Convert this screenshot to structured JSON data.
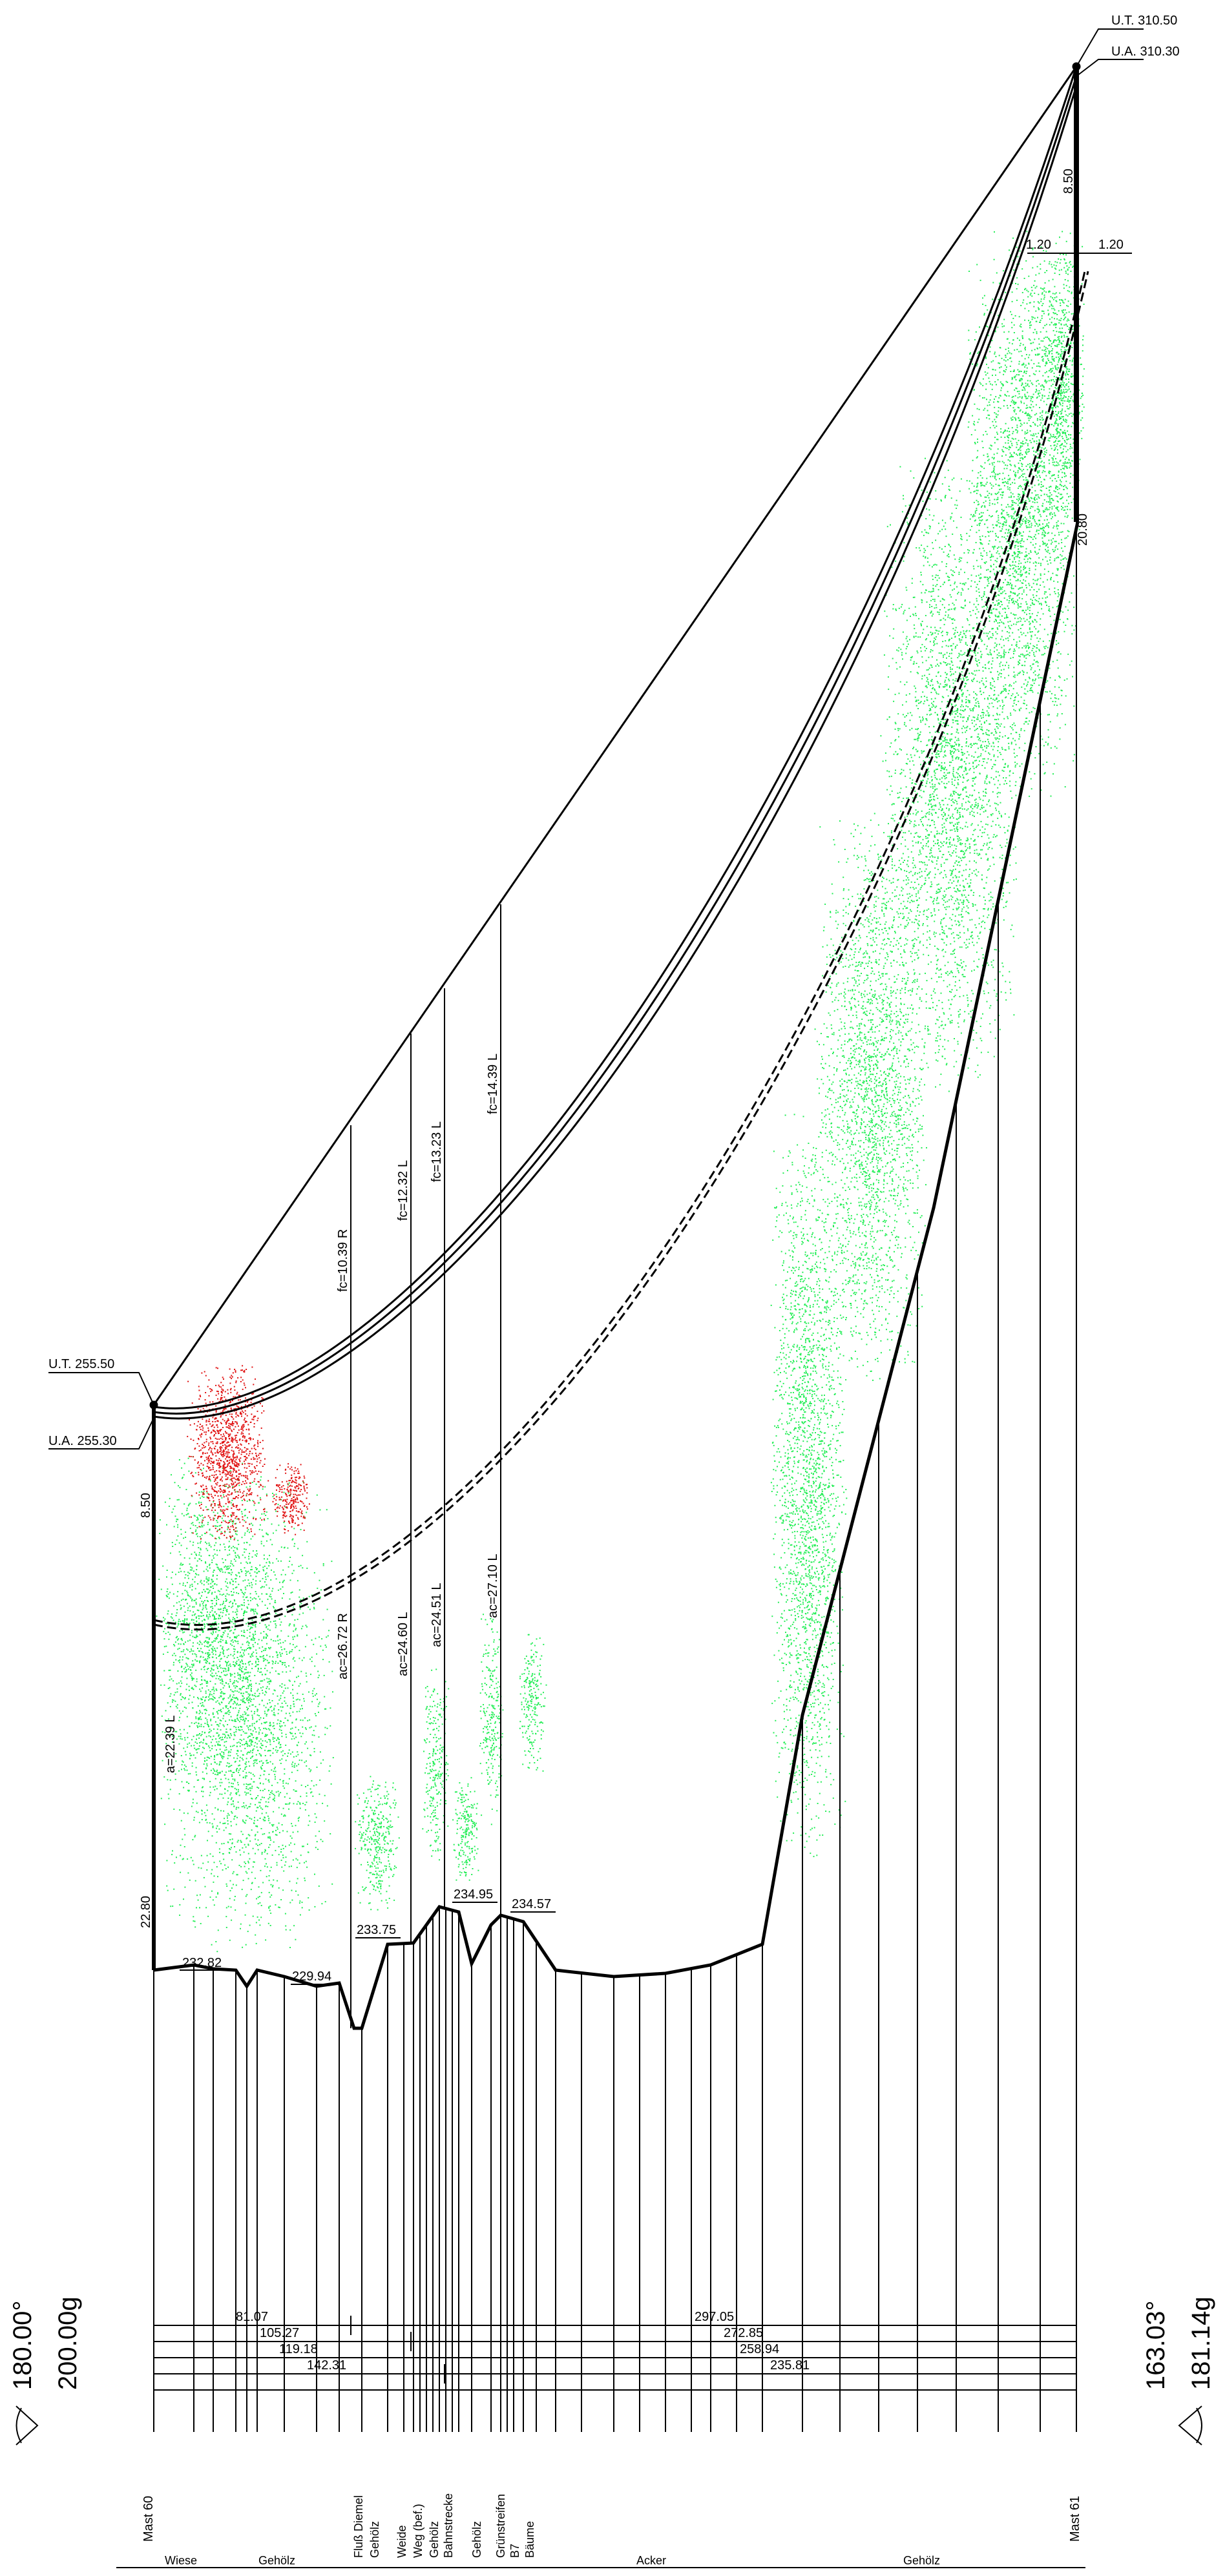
{
  "towers": {
    "left": {
      "name": "Mast 60",
      "ut_label": "U.T. 255.50",
      "ua_label": "U.A. 255.30",
      "height_label": "22.80",
      "arm_label": "8.50",
      "ground_label": "232.82",
      "angle_deg": "180.00°",
      "angle_gon": "200.00g"
    },
    "right": {
      "name": "Mast 61",
      "ut_label": "U.T. 310.50",
      "ua_label": "U.A. 310.30",
      "height_label": "20.80",
      "arm_label": "8.50",
      "offset_left": "1.20",
      "offset_right": "1.20",
      "angle_deg": "163.03°",
      "angle_gon": "181.14g"
    }
  },
  "sag_labels": [
    {
      "fc": "fc=10.39 R",
      "ac": "ac=26.72 R"
    },
    {
      "fc": "fc=12.32 L",
      "ac": "ac=24.60 L"
    },
    {
      "fc": "fc=13.23 L",
      "ac": "ac=24.51 L"
    },
    {
      "fc": "fc=14.39 L",
      "ac": "ac=27.10 L"
    }
  ],
  "a_label": "a=22.39 L",
  "elevations": [
    "229.94",
    "233.75",
    "234.95",
    "234.57"
  ],
  "distances_left": [
    "81.07",
    "105.27",
    "119.18",
    "142.31"
  ],
  "distances_right": [
    "297.05",
    "272.85",
    "258.94",
    "235.81"
  ],
  "landuse_rotated": [
    "Fluß Diemel",
    "Gehölz",
    "Weide",
    "Weg (bef.)",
    "Gehölz",
    "Bahnstrecke",
    "Gehölz",
    "Grünstreifen",
    "B7",
    "Bäume"
  ],
  "landuse_bottom": [
    "Wiese",
    "Gehölz",
    "Acker",
    "Gehölz"
  ],
  "colors": {
    "vegetation": "#22ee55",
    "violation": "#e01010",
    "line": "#000000"
  }
}
